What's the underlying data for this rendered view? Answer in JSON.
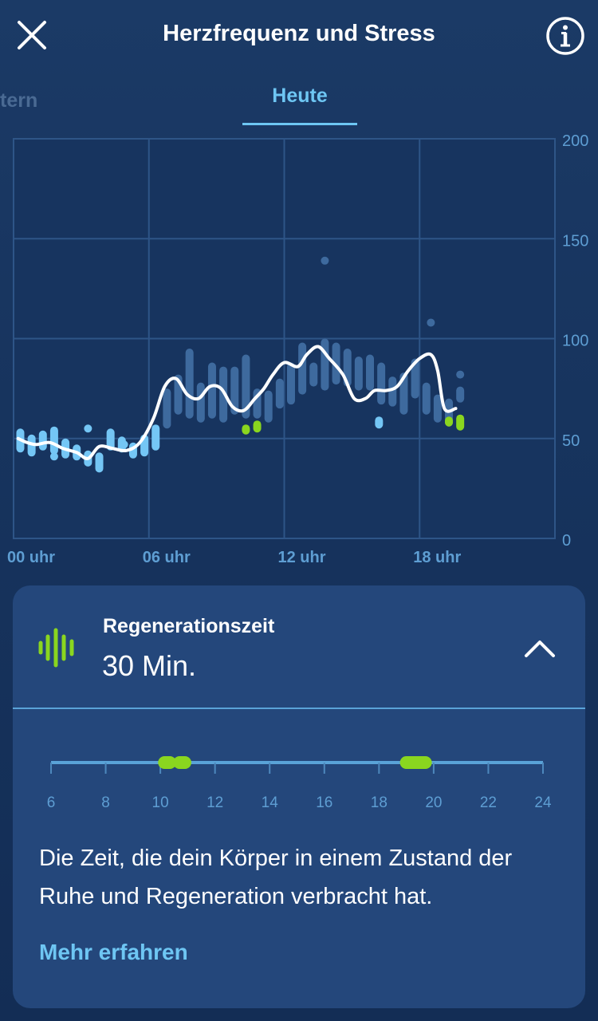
{
  "header": {
    "title": "Herzfrequenz und Stress",
    "close_icon": "close-icon",
    "info_icon": "info-icon"
  },
  "tabs": {
    "previous_label_partial": "tern",
    "active_label": "Heute"
  },
  "chart_data": {
    "type": "line",
    "x_unit": "hour",
    "x_ticks": [
      {
        "value": 0,
        "label": "00 uhr"
      },
      {
        "value": 6,
        "label": "06 uhr"
      },
      {
        "value": 12,
        "label": "12 uhr"
      },
      {
        "value": 18,
        "label": "18 uhr"
      }
    ],
    "xlim": [
      0,
      24
    ],
    "ylim": [
      0,
      200
    ],
    "y_ticks": [
      {
        "value": 200,
        "label": "200"
      },
      {
        "value": 150,
        "label": "150"
      },
      {
        "value": 100,
        "label": "100"
      },
      {
        "value": 50,
        "label": "50"
      },
      {
        "value": 0,
        "label": "0"
      }
    ],
    "grid": true,
    "colors": {
      "line": "#ffffff",
      "bars_faded": "#3e6a9e",
      "bars_highlight": "#74c6f5",
      "bars_recovery": "#8ad61f",
      "grid": "#2e5587",
      "axis_label": "#5e9ed3"
    },
    "heart_rate_line": {
      "x": [
        0.2,
        0.6,
        1.0,
        1.6,
        2.2,
        2.8,
        3.3,
        3.8,
        4.4,
        5.0,
        5.6,
        6.2,
        6.7,
        7.2,
        7.7,
        8.2,
        8.7,
        9.2,
        9.7,
        10.2,
        10.7,
        11.1,
        11.5,
        12.0,
        12.6,
        13.0,
        13.5,
        14.0,
        14.6,
        15.1,
        15.6,
        16.0,
        16.5,
        17.0,
        17.5,
        18.0,
        18.5,
        18.8,
        19.1,
        19.6
      ],
      "y": [
        50,
        48,
        47,
        48,
        45,
        43,
        40,
        46,
        45,
        44,
        48,
        60,
        76,
        80,
        72,
        70,
        76,
        75,
        66,
        64,
        70,
        75,
        82,
        88,
        86,
        92,
        96,
        90,
        82,
        70,
        70,
        74,
        74,
        76,
        84,
        90,
        92,
        84,
        65,
        65
      ]
    },
    "hr_range_bars": [
      {
        "x": 0.3,
        "low": 43,
        "high": 55,
        "kind": "highlight"
      },
      {
        "x": 0.8,
        "low": 41,
        "high": 52,
        "kind": "highlight"
      },
      {
        "x": 1.3,
        "low": 44,
        "high": 54,
        "kind": "highlight"
      },
      {
        "x": 1.8,
        "low": 42,
        "high": 56,
        "kind": "highlight"
      },
      {
        "x": 2.3,
        "low": 40,
        "high": 50,
        "kind": "highlight"
      },
      {
        "x": 2.8,
        "low": 39,
        "high": 47,
        "kind": "highlight"
      },
      {
        "x": 3.3,
        "low": 36,
        "high": 44,
        "kind": "highlight"
      },
      {
        "x": 3.8,
        "low": 33,
        "high": 43,
        "kind": "highlight"
      },
      {
        "x": 4.3,
        "low": 44,
        "high": 55,
        "kind": "highlight"
      },
      {
        "x": 4.8,
        "low": 43,
        "high": 51,
        "kind": "highlight"
      },
      {
        "x": 5.3,
        "low": 40,
        "high": 48,
        "kind": "highlight"
      },
      {
        "x": 5.8,
        "low": 41,
        "high": 52,
        "kind": "highlight"
      },
      {
        "x": 6.3,
        "low": 44,
        "high": 57,
        "kind": "highlight"
      },
      {
        "x": 6.8,
        "low": 55,
        "high": 75,
        "kind": "faded"
      },
      {
        "x": 7.3,
        "low": 62,
        "high": 82,
        "kind": "faded"
      },
      {
        "x": 7.8,
        "low": 60,
        "high": 95,
        "kind": "faded"
      },
      {
        "x": 8.3,
        "low": 58,
        "high": 78,
        "kind": "faded"
      },
      {
        "x": 8.8,
        "low": 60,
        "high": 88,
        "kind": "faded"
      },
      {
        "x": 9.3,
        "low": 58,
        "high": 86,
        "kind": "faded"
      },
      {
        "x": 9.8,
        "low": 62,
        "high": 86,
        "kind": "faded"
      },
      {
        "x": 10.3,
        "low": 60,
        "high": 92,
        "kind": "faded"
      },
      {
        "x": 10.8,
        "low": 60,
        "high": 75,
        "kind": "faded"
      },
      {
        "x": 11.3,
        "low": 58,
        "high": 74,
        "kind": "faded"
      },
      {
        "x": 11.8,
        "low": 65,
        "high": 80,
        "kind": "faded"
      },
      {
        "x": 12.3,
        "low": 67,
        "high": 88,
        "kind": "faded"
      },
      {
        "x": 12.8,
        "low": 72,
        "high": 98,
        "kind": "faded"
      },
      {
        "x": 13.3,
        "low": 76,
        "high": 88,
        "kind": "faded"
      },
      {
        "x": 13.8,
        "low": 74,
        "high": 100,
        "kind": "faded"
      },
      {
        "x": 14.3,
        "low": 77,
        "high": 98,
        "kind": "faded"
      },
      {
        "x": 14.8,
        "low": 76,
        "high": 95,
        "kind": "faded"
      },
      {
        "x": 15.3,
        "low": 74,
        "high": 91,
        "kind": "faded"
      },
      {
        "x": 15.8,
        "low": 74,
        "high": 92,
        "kind": "faded"
      },
      {
        "x": 16.3,
        "low": 67,
        "high": 88,
        "kind": "faded"
      },
      {
        "x": 16.8,
        "low": 66,
        "high": 81,
        "kind": "faded"
      },
      {
        "x": 17.3,
        "low": 62,
        "high": 83,
        "kind": "faded"
      },
      {
        "x": 17.8,
        "low": 70,
        "high": 90,
        "kind": "faded"
      },
      {
        "x": 18.3,
        "low": 62,
        "high": 78,
        "kind": "faded"
      },
      {
        "x": 18.8,
        "low": 58,
        "high": 72,
        "kind": "faded"
      },
      {
        "x": 19.3,
        "low": 56,
        "high": 70,
        "kind": "faded"
      },
      {
        "x": 19.8,
        "low": 68,
        "high": 76,
        "kind": "faded"
      }
    ],
    "hr_dots": [
      {
        "x": 1.8,
        "y": 41,
        "kind": "highlight"
      },
      {
        "x": 3.3,
        "y": 55,
        "kind": "highlight"
      },
      {
        "x": 4.9,
        "y": 47,
        "kind": "highlight"
      },
      {
        "x": 13.8,
        "y": 139,
        "kind": "faded"
      },
      {
        "x": 18.5,
        "y": 108,
        "kind": "faded"
      },
      {
        "x": 19.8,
        "y": 82,
        "kind": "faded"
      }
    ],
    "highlight_bars": [
      {
        "x": 16.2,
        "low": 55,
        "high": 61,
        "kind": "highlight"
      }
    ],
    "recovery_bars": [
      {
        "x": 10.3,
        "low": 52,
        "high": 57,
        "kind": "recovery"
      },
      {
        "x": 10.8,
        "low": 53,
        "high": 59,
        "kind": "recovery"
      },
      {
        "x": 19.3,
        "low": 56,
        "high": 61,
        "kind": "recovery"
      },
      {
        "x": 19.8,
        "low": 54,
        "high": 62,
        "kind": "recovery"
      }
    ]
  },
  "regeneration": {
    "icon": "recovery-waveform-icon",
    "title": "Regenerationszeit",
    "value": "30 Min.",
    "toggle_icon": "chevron-up-icon",
    "timeline": {
      "start_hour": 6,
      "end_hour": 24,
      "tick_labels": [
        "6",
        "8",
        "10",
        "12",
        "14",
        "16",
        "18",
        "20",
        "22",
        "24"
      ],
      "periods": [
        {
          "start": 10.15,
          "end": 10.35
        },
        {
          "start": 10.7,
          "end": 10.9
        },
        {
          "start": 19.0,
          "end": 19.7
        }
      ]
    },
    "description": "Die Zeit, die dein Körper in einem Zustand der Ruhe und Regeneration verbracht hat.",
    "link_label": "Mehr erfahren"
  }
}
